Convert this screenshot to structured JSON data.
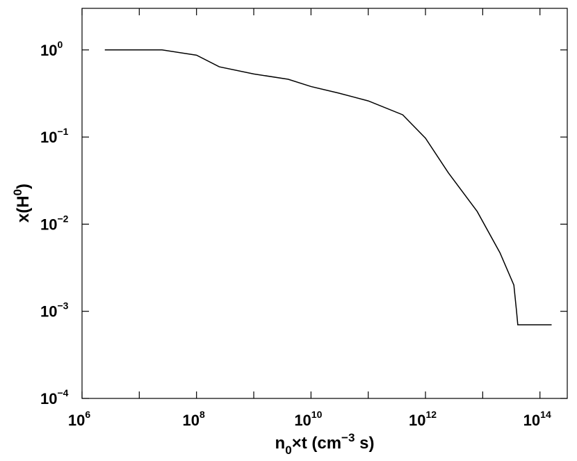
{
  "chart_data": {
    "type": "line",
    "x_scale": "log",
    "y_scale": "log",
    "xlim": [
      1000000.0,
      300000000000000.0
    ],
    "ylim": [
      0.0001,
      3
    ],
    "grid": false,
    "legend": "none",
    "line_color": "#000000",
    "x_ticks": [
      {
        "base": "10",
        "exp": "6",
        "value": 1000000.0
      },
      {
        "base": "10",
        "exp": "8",
        "value": 100000000.0
      },
      {
        "base": "10",
        "exp": "10",
        "value": 10000000000.0
      },
      {
        "base": "10",
        "exp": "12",
        "value": 1000000000000.0
      },
      {
        "base": "10",
        "exp": "14",
        "value": 100000000000000.0
      }
    ],
    "y_ticks": [
      {
        "base": "10",
        "exp": "0",
        "value": 1
      },
      {
        "base": "10",
        "exp": "−1",
        "value": 0.1
      },
      {
        "base": "10",
        "exp": "−2",
        "value": 0.01
      },
      {
        "base": "10",
        "exp": "−3",
        "value": 0.001
      },
      {
        "base": "10",
        "exp": "−4",
        "value": 0.0001
      }
    ],
    "xlabel": {
      "pre": "n",
      "sub": "0",
      "mid": "×t (cm",
      "sup": "−3",
      "post": " s)"
    },
    "ylabel": {
      "pre": "x(H",
      "sup": "0",
      "post": ")"
    },
    "series": [
      {
        "x": [
          2500000.0,
          25000000.0,
          100000000.0,
          250000000.0,
          1000000000.0,
          4000000000.0,
          10000000000.0,
          30000000000.0,
          100000000000.0,
          400000000000.0,
          1000000000000.0,
          2500000000000.0,
          8000000000000.0,
          20000000000000.0,
          35000000000000.0,
          39000000000000.0,
          41000000000000.0,
          160000000000000.0
        ],
        "y": [
          1.0,
          1.0,
          0.87,
          0.64,
          0.53,
          0.46,
          0.38,
          0.32,
          0.26,
          0.18,
          0.097,
          0.039,
          0.014,
          0.0047,
          0.002,
          0.001,
          0.0007,
          0.0007
        ]
      }
    ]
  }
}
